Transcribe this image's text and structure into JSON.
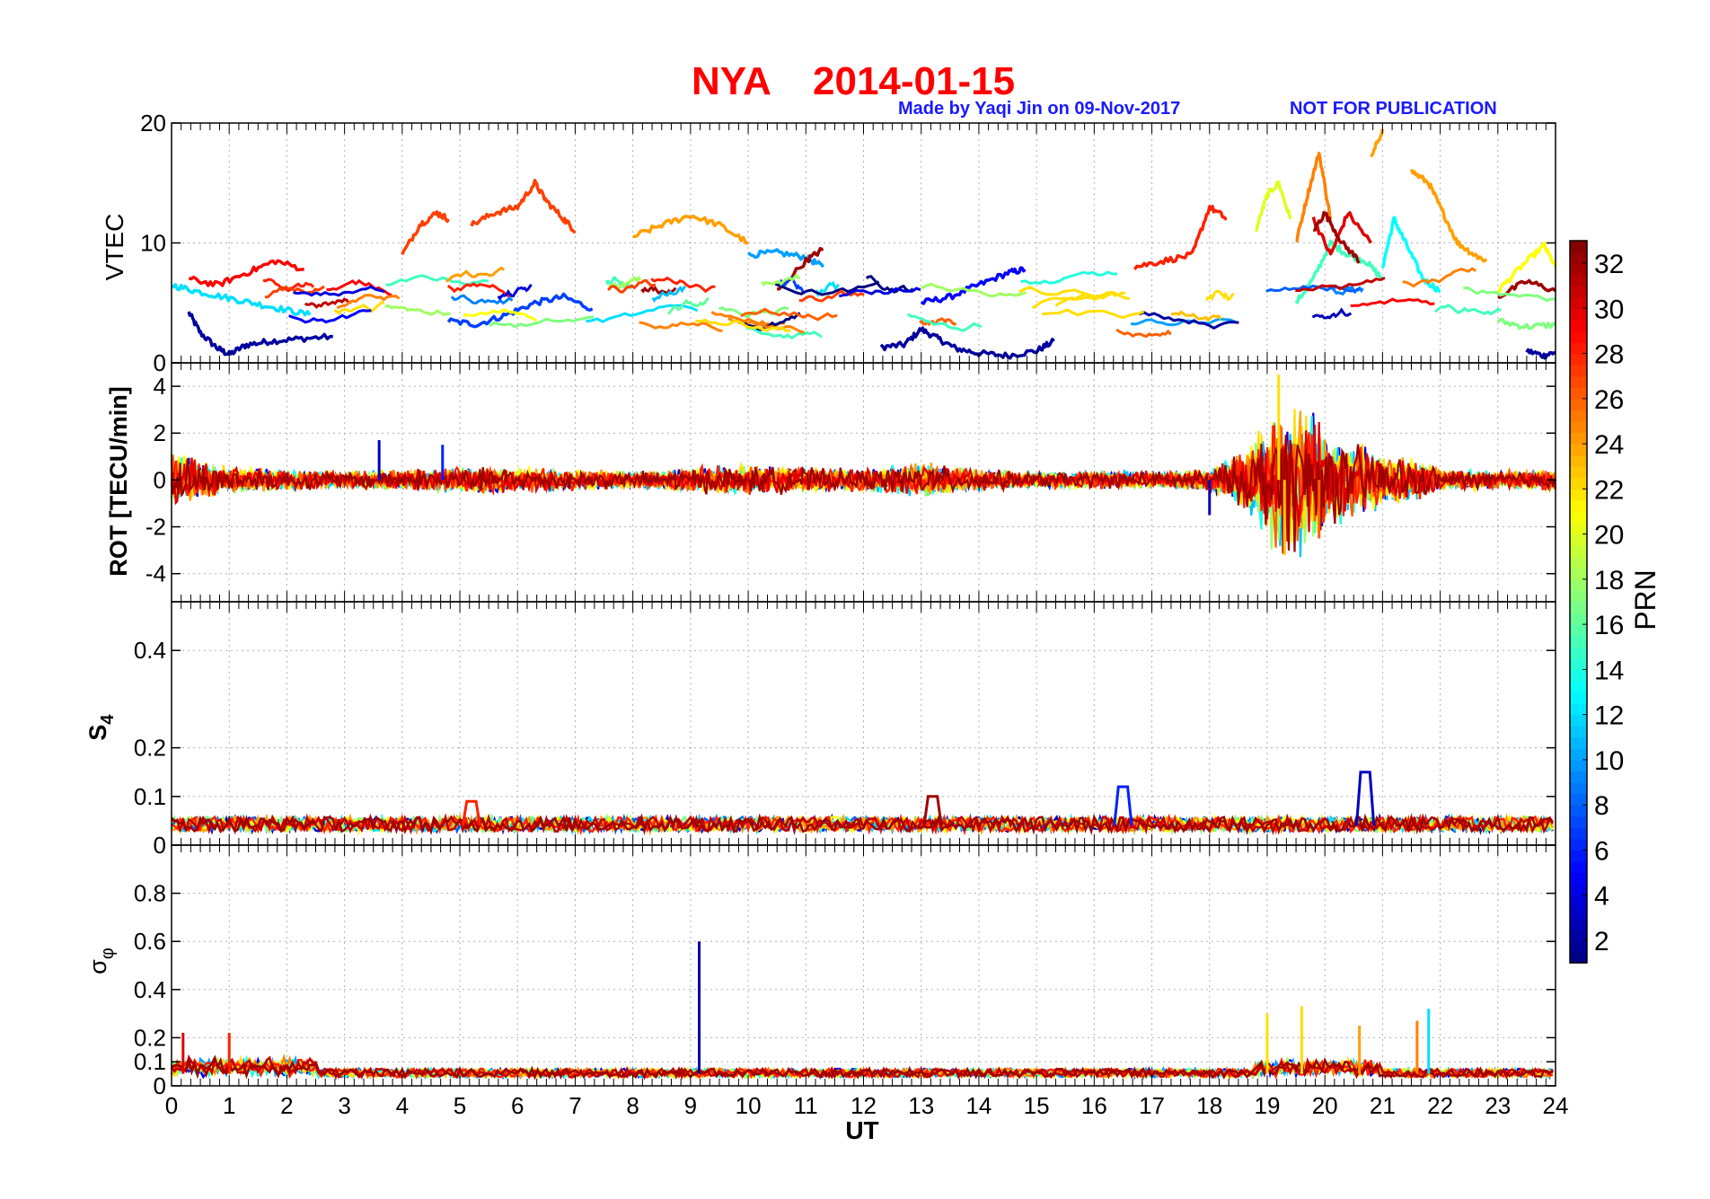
{
  "title": {
    "station": "NYA",
    "date": "2014-01-15",
    "credit": "Made by Yaqi Jin on 09-Nov-2017",
    "notice": "NOT FOR PUBLICATION"
  },
  "colors": {
    "title": "#ff0000",
    "credit": "#1a1aff",
    "grid": "#b0b0b0"
  },
  "chart_data": [
    {
      "type": "line",
      "panel": "vtec",
      "ylabel": "VTEC",
      "ylim": [
        0,
        20
      ],
      "yticks": [
        0,
        10,
        20
      ],
      "xlim": [
        0,
        24
      ],
      "xticks": [
        0,
        1,
        2,
        3,
        4,
        5,
        6,
        7,
        8,
        9,
        10,
        11,
        12,
        13,
        14,
        15,
        16,
        17,
        18,
        19,
        20,
        21,
        22,
        23,
        24
      ],
      "xlabel": "UT",
      "grid": true,
      "color_by": "PRN",
      "series": [
        {
          "prn": 2,
          "x": [
            0.3,
            0.5,
            0.8,
            1.0,
            1.3,
            1.7,
            2.2,
            2.8
          ],
          "y": [
            4.2,
            2.5,
            1.2,
            0.7,
            1.5,
            1.8,
            2.0,
            2.2
          ]
        },
        {
          "prn": 2,
          "x": [
            12.3,
            12.7,
            13.0,
            13.3,
            13.6,
            14.0,
            14.5,
            15.0,
            15.3
          ],
          "y": [
            1.3,
            1.5,
            2.8,
            2.0,
            1.2,
            0.8,
            0.6,
            1.0,
            1.8
          ]
        },
        {
          "prn": 2,
          "x": [
            23.5,
            23.8,
            24.0
          ],
          "y": [
            1.0,
            0.6,
            0.9
          ]
        },
        {
          "prn": 5,
          "x": [
            13.0,
            13.5,
            14.0,
            14.5,
            14.8
          ],
          "y": [
            5.0,
            5.5,
            6.5,
            7.5,
            7.8
          ]
        },
        {
          "prn": 7,
          "x": [
            4.8,
            5.3,
            5.8,
            6.3,
            6.8,
            7.3
          ],
          "y": [
            3.5,
            3.2,
            4.0,
            5.0,
            5.5,
            4.5
          ]
        },
        {
          "prn": 10,
          "x": [
            10.0,
            10.5,
            11.0,
            11.3
          ],
          "y": [
            9.0,
            9.2,
            8.8,
            8.0
          ]
        },
        {
          "prn": 12,
          "x": [
            0.0,
            0.4,
            0.9,
            1.4,
            1.9,
            2.4
          ],
          "y": [
            6.5,
            6.0,
            5.5,
            5.0,
            4.5,
            4.0
          ]
        },
        {
          "prn": 13,
          "x": [
            21.0,
            21.2,
            21.4,
            21.7,
            22.0
          ],
          "y": [
            8.0,
            12.0,
            10.0,
            7.0,
            6.0
          ]
        },
        {
          "prn": 15,
          "x": [
            19.5,
            19.8,
            20.1,
            20.4,
            20.7,
            21.0
          ],
          "y": [
            5.0,
            7.0,
            10.0,
            9.0,
            8.5,
            7.0
          ]
        },
        {
          "prn": 17,
          "x": [
            23.0,
            23.5,
            24.0
          ],
          "y": [
            3.5,
            3.0,
            3.2
          ]
        },
        {
          "prn": 20,
          "x": [
            18.8,
            19.0,
            19.2,
            19.4
          ],
          "y": [
            11.0,
            14.0,
            15.0,
            12.0
          ]
        },
        {
          "prn": 21,
          "x": [
            23.0,
            23.4,
            23.8,
            24.0
          ],
          "y": [
            6.0,
            8.0,
            9.8,
            8.0
          ]
        },
        {
          "prn": 24,
          "x": [
            8.0,
            8.5,
            9.0,
            9.5,
            10.0
          ],
          "y": [
            10.5,
            11.5,
            12.3,
            11.5,
            10.0
          ]
        },
        {
          "prn": 24,
          "x": [
            20.8,
            21.0
          ],
          "y": [
            17.0,
            19.5
          ]
        },
        {
          "prn": 24,
          "x": [
            21.5,
            21.8,
            22.0,
            22.3,
            22.6,
            22.8
          ],
          "y": [
            16.0,
            15.0,
            13.0,
            10.0,
            9.0,
            8.5
          ]
        },
        {
          "prn": 25,
          "x": [
            19.5,
            19.7,
            19.9,
            20.1
          ],
          "y": [
            10.0,
            14.0,
            17.5,
            12.0
          ]
        },
        {
          "prn": 27,
          "x": [
            4.0,
            4.3,
            4.6,
            4.8
          ],
          "y": [
            9.0,
            11.5,
            12.5,
            12.0
          ]
        },
        {
          "prn": 27,
          "x": [
            5.2,
            5.6,
            6.0,
            6.3,
            6.5,
            6.8,
            7.0
          ],
          "y": [
            11.5,
            12.5,
            13.0,
            15.0,
            13.5,
            12.0,
            11.0
          ]
        },
        {
          "prn": 28,
          "x": [
            16.7,
            17.2,
            17.7,
            18.0,
            18.3
          ],
          "y": [
            8.0,
            8.5,
            9.0,
            13.0,
            12.0
          ]
        },
        {
          "prn": 29,
          "x": [
            0.3,
            0.8,
            1.3,
            1.8,
            2.3
          ],
          "y": [
            7.0,
            6.5,
            7.5,
            8.5,
            7.8
          ]
        },
        {
          "prn": 30,
          "x": [
            19.8,
            20.1,
            20.4,
            20.8
          ],
          "y": [
            12.0,
            9.0,
            12.5,
            10.0
          ]
        },
        {
          "prn": 32,
          "x": [
            10.5,
            11.0,
            11.3
          ],
          "y": [
            6.0,
            8.5,
            9.5
          ]
        },
        {
          "prn": 32,
          "x": [
            19.8,
            20.0,
            20.3,
            20.6
          ],
          "y": [
            11.0,
            12.5,
            10.0,
            8.5
          ]
        },
        {
          "prn": 32,
          "x": [
            23.0,
            23.5,
            24.0
          ],
          "y": [
            5.5,
            6.8,
            6.0
          ]
        }
      ]
    },
    {
      "type": "line",
      "panel": "rot",
      "ylabel": "ROT [TECU/min]",
      "ylim": [
        -5.2,
        5
      ],
      "yticks": [
        -4,
        -2,
        0,
        2,
        4
      ],
      "xlim": [
        0,
        24
      ],
      "grid": true,
      "color_by": "PRN",
      "noise_envelope": {
        "x": [
          0,
          0.5,
          1,
          2,
          3,
          4,
          5,
          6,
          7,
          8,
          9,
          10,
          11,
          12,
          13,
          14,
          15,
          16,
          17,
          18,
          18.7,
          19.2,
          19.6,
          20.0,
          20.4,
          20.8,
          21.2,
          21.6,
          22,
          23,
          24
        ],
        "amplitude": [
          1.4,
          0.9,
          0.6,
          0.5,
          0.4,
          0.5,
          0.6,
          0.6,
          0.5,
          0.4,
          0.6,
          0.7,
          0.6,
          0.5,
          0.8,
          0.5,
          0.4,
          0.4,
          0.4,
          0.5,
          1.5,
          3.8,
          3.5,
          2.5,
          1.8,
          1.5,
          1.2,
          1.0,
          0.5,
          0.4,
          0.5
        ]
      },
      "peaks": [
        {
          "x": 19.2,
          "y": 4.5,
          "prn": 22
        },
        {
          "x": 19.3,
          "y": -3.2,
          "prn": 23
        },
        {
          "x": 19.9,
          "y": -2.5,
          "prn": 26
        },
        {
          "x": 3.6,
          "y": 1.7,
          "prn": 3
        },
        {
          "x": 4.7,
          "y": 1.5,
          "prn": 6
        },
        {
          "x": 18.0,
          "y": -1.5,
          "prn": 3
        }
      ]
    },
    {
      "type": "line",
      "panel": "s4",
      "ylabel": "S4",
      "ylim": [
        0,
        0.5
      ],
      "yticks": [
        0,
        0.1,
        0.2,
        0.4
      ],
      "xlim": [
        0,
        24
      ],
      "grid": true,
      "color_by": "PRN",
      "baseline": 0.04,
      "peaks": [
        {
          "x": 16.5,
          "y": 0.12,
          "prn": 6
        },
        {
          "x": 20.7,
          "y": 0.15,
          "prn": 3
        },
        {
          "x": 13.2,
          "y": 0.1,
          "prn": 32
        },
        {
          "x": 5.2,
          "y": 0.09,
          "prn": 28
        }
      ]
    },
    {
      "type": "line",
      "panel": "sigma_phi",
      "ylabel": "σφ",
      "ylim": [
        0,
        1
      ],
      "yticks": [
        0,
        0.1,
        0.2,
        0.4,
        0.6,
        0.8
      ],
      "xlim": [
        0,
        24
      ],
      "grid": true,
      "color_by": "PRN",
      "baseline": 0.05,
      "peaks": [
        {
          "x": 9.15,
          "y": 0.6,
          "prn": 2
        },
        {
          "x": 0.2,
          "y": 0.22,
          "prn": 30
        },
        {
          "x": 1.0,
          "y": 0.22,
          "prn": 28
        },
        {
          "x": 19.0,
          "y": 0.3,
          "prn": 22
        },
        {
          "x": 19.6,
          "y": 0.33,
          "prn": 22
        },
        {
          "x": 20.6,
          "y": 0.25,
          "prn": 24
        },
        {
          "x": 21.8,
          "y": 0.32,
          "prn": 12
        },
        {
          "x": 21.6,
          "y": 0.27,
          "prn": 25
        }
      ]
    }
  ],
  "colorbar": {
    "label": "PRN",
    "min": 1,
    "max": 33,
    "ticks": [
      2,
      4,
      6,
      8,
      10,
      12,
      14,
      16,
      18,
      20,
      22,
      24,
      26,
      28,
      30,
      32
    ]
  }
}
